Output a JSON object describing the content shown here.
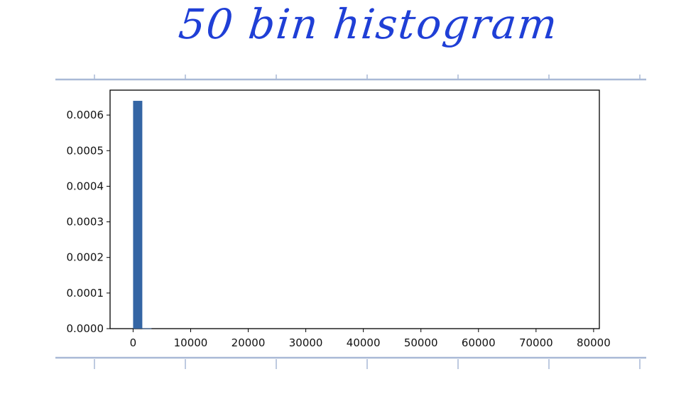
{
  "annotation": {
    "handwritten_title": "50 bin histogram",
    "ink_color": "#1f3fd6"
  },
  "notebook": {
    "rule_color": "#a9b9d6"
  },
  "chart_data": {
    "type": "bar",
    "title": "",
    "xlabel": "",
    "ylabel": "",
    "bins": 50,
    "xlim": [
      -4000,
      81000
    ],
    "ylim": [
      0,
      0.00067
    ],
    "x_ticks": [
      0,
      10000,
      20000,
      30000,
      40000,
      50000,
      60000,
      70000,
      80000
    ],
    "x_tick_labels": [
      "0",
      "10000",
      "20000",
      "30000",
      "40000",
      "50000",
      "60000",
      "70000",
      "80000"
    ],
    "y_ticks": [
      0.0,
      0.0001,
      0.0002,
      0.0003,
      0.0004,
      0.0005,
      0.0006
    ],
    "y_tick_labels": [
      "0.0000",
      "0.0001",
      "0.0002",
      "0.0003",
      "0.0004",
      "0.0005",
      "0.0006"
    ],
    "bars": [
      {
        "x0": 0,
        "x1": 1600,
        "density": 0.00064
      },
      {
        "x0": 1600,
        "x1": 3200,
        "density": 1e-06
      }
    ],
    "bar_color": "#3465a4",
    "grid": false
  }
}
